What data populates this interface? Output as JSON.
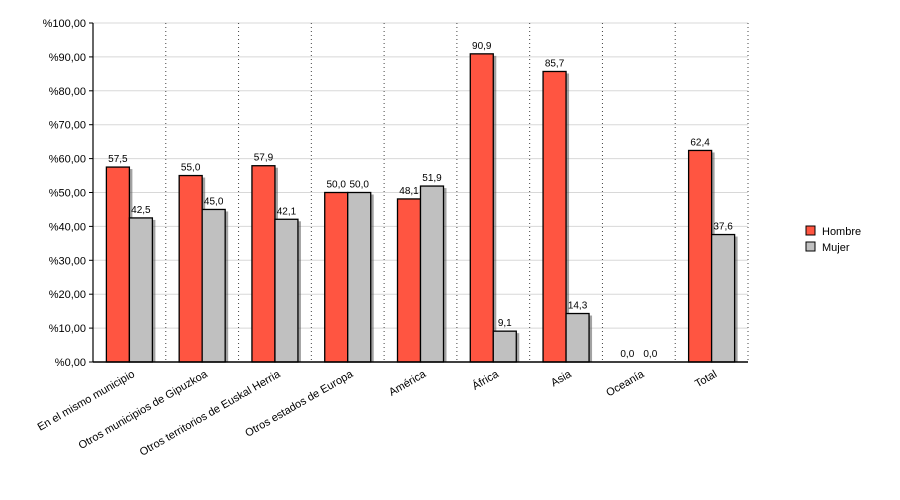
{
  "chart_data": {
    "type": "bar",
    "categories": [
      "En el mismo municipio",
      "Otros municipios de Gipuzkoa",
      "Otros territorios de Euskal Herria",
      "Otros estados de Europa",
      "América",
      "África",
      "Asia",
      "Oceanía",
      "Total"
    ],
    "series": [
      {
        "name": "Hombre",
        "color": "#ff5541",
        "values": [
          57.5,
          55.0,
          57.9,
          50.0,
          48.1,
          90.9,
          85.7,
          0.0,
          62.4
        ],
        "labels": [
          "57,5",
          "55,0",
          "57,9",
          "50,0",
          "48,1",
          "90,9",
          "85,7",
          "0,0",
          "62,4"
        ]
      },
      {
        "name": "Mujer",
        "color": "#c0c0c0",
        "values": [
          42.5,
          45.0,
          42.1,
          50.0,
          51.9,
          9.1,
          14.3,
          0.0,
          37.6
        ],
        "labels": [
          "42,5",
          "45,0",
          "42,1",
          "50,0",
          "51,9",
          "9,1",
          "14,3",
          "0,0",
          "37,6"
        ]
      }
    ],
    "y_ticks": [
      "%0,00",
      "%10,00",
      "%20,00",
      "%30,00",
      "%40,00",
      "%50,00",
      "%60,00",
      "%70,00",
      "%80,00",
      "%90,00",
      "%100,00"
    ],
    "ylim": [
      0,
      100
    ],
    "legend_position": "right",
    "grid": true
  }
}
